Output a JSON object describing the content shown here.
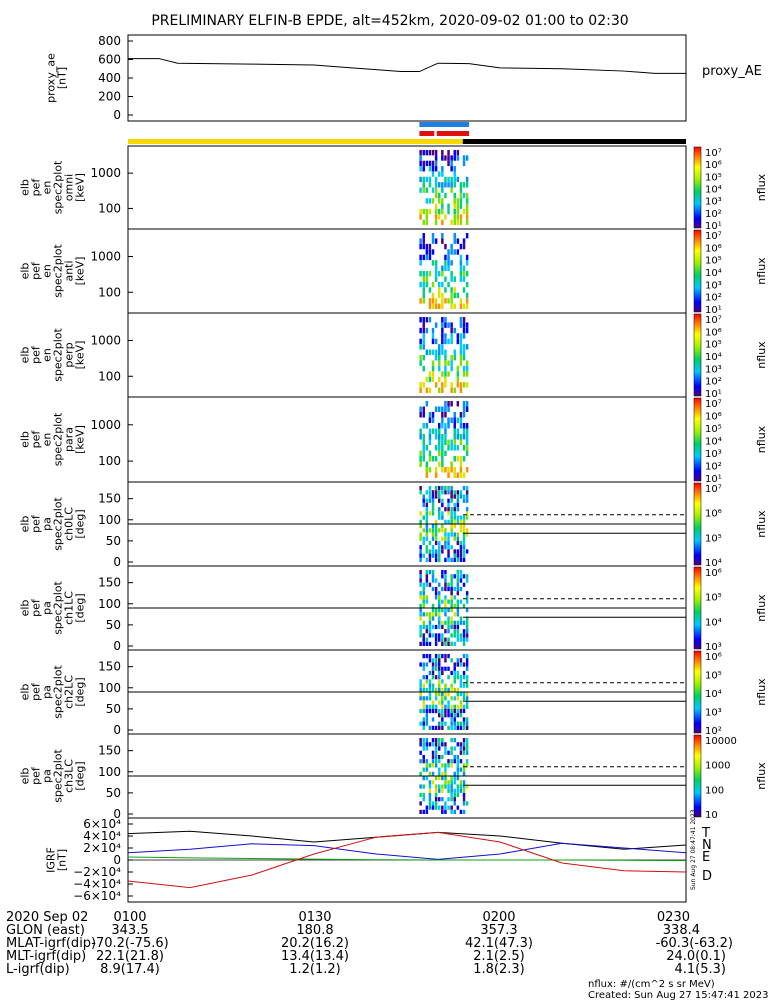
{
  "title": "PRELIMINARY ELFIN-B EPDE, alt=452km, 2020-09-02 01:00 to 02:30",
  "colors": {
    "sunlit_bar": "#f5d800",
    "shadow_bar": "#000000",
    "science_blue": "#1f7fe0",
    "science_red": "#e01010",
    "trace_T": "#000000",
    "trace_N": "#1010d0",
    "trace_E": "#10a010",
    "trace_D": "#d01010"
  },
  "panels": [
    {
      "id": "proxy_ae",
      "ylabel": [
        "proxy_ae",
        "[nT]"
      ],
      "right_label": "proxy_AE",
      "yticks": [
        "800",
        "600",
        "400",
        "200",
        "0"
      ]
    },
    {
      "id": "omni",
      "ylabel": [
        "elb",
        "pef",
        "en",
        "spec2plot",
        "omni",
        "[keV]"
      ],
      "yticks": [
        "1000",
        "100"
      ],
      "cbar_label": "nflux",
      "cbar_ticks": [
        "10⁷",
        "10⁶",
        "10⁵",
        "10⁴",
        "10³",
        "10²",
        "10¹"
      ]
    },
    {
      "id": "anti",
      "ylabel": [
        "elb",
        "pef",
        "en",
        "spec2plot",
        "anti",
        "[keV]"
      ],
      "yticks": [
        "1000",
        "100"
      ],
      "cbar_label": "nflux",
      "cbar_ticks": [
        "10⁷",
        "10⁶",
        "10⁵",
        "10⁴",
        "10³",
        "10²",
        "10¹"
      ]
    },
    {
      "id": "perp",
      "ylabel": [
        "elb",
        "pef",
        "en",
        "spec2plot",
        "perp",
        "[keV]"
      ],
      "yticks": [
        "1000",
        "100"
      ],
      "cbar_label": "nflux",
      "cbar_ticks": [
        "10⁷",
        "10⁶",
        "10⁵",
        "10⁴",
        "10³",
        "10²",
        "10¹"
      ]
    },
    {
      "id": "para",
      "ylabel": [
        "elb",
        "pef",
        "en",
        "spec2plot",
        "para",
        "[keV]"
      ],
      "yticks": [
        "1000",
        "100"
      ],
      "cbar_label": "nflux",
      "cbar_ticks": [
        "10⁷",
        "10⁶",
        "10⁵",
        "10⁴",
        "10³",
        "10²",
        "10¹"
      ]
    },
    {
      "id": "ch0LC",
      "ylabel": [
        "elb",
        "pef",
        "pa",
        "spec2plot",
        "ch0LC",
        "[deg]"
      ],
      "yticks": [
        "150",
        "100",
        "50",
        "0"
      ],
      "cbar_label": "nflux",
      "cbar_ticks": [
        "10⁷",
        "10⁶",
        "10⁵",
        "10⁴"
      ]
    },
    {
      "id": "ch1LC",
      "ylabel": [
        "elb",
        "pef",
        "pa",
        "spec2plot",
        "ch1LC",
        "[deg]"
      ],
      "yticks": [
        "150",
        "100",
        "50",
        "0"
      ],
      "cbar_label": "nflux",
      "cbar_ticks": [
        "10⁶",
        "10⁵",
        "10⁴",
        "10³"
      ]
    },
    {
      "id": "ch2LC",
      "ylabel": [
        "elb",
        "pef",
        "pa",
        "spec2plot",
        "ch2LC",
        "[deg]"
      ],
      "yticks": [
        "150",
        "100",
        "50",
        "0"
      ],
      "cbar_label": "nflux",
      "cbar_ticks": [
        "10⁶",
        "10⁵",
        "10⁴",
        "10³",
        "10²"
      ]
    },
    {
      "id": "ch3LC",
      "ylabel": [
        "elb",
        "pef",
        "pa",
        "spec2plot",
        "ch3LC",
        "[deg]"
      ],
      "yticks": [
        "150",
        "100",
        "50",
        "0"
      ],
      "cbar_label": "nflux",
      "cbar_ticks": [
        "10000",
        "1000",
        "100",
        "10"
      ]
    },
    {
      "id": "igrf",
      "ylabel": [
        "IGRF",
        "[nT]"
      ],
      "yticks": [
        "6×10⁴",
        "4×10⁴",
        "2×10⁴",
        "0",
        "−2×10⁴",
        "−4×10⁴",
        "−6×10⁴"
      ],
      "legend": [
        "T",
        "N",
        "E",
        "D"
      ]
    }
  ],
  "chart_data": {
    "type": "line",
    "x_unit": "UT",
    "x_range": [
      "2020-09-02 01:00",
      "2020-09-02 02:30"
    ],
    "proxy_ae": {
      "ylim": [
        0,
        800
      ],
      "x": [
        "01:00",
        "01:05",
        "01:08",
        "01:20",
        "01:30",
        "01:35",
        "01:40",
        "01:44",
        "01:47",
        "01:50",
        "01:55",
        "02:00",
        "02:10",
        "02:20",
        "02:25",
        "02:30"
      ],
      "values": [
        610,
        610,
        560,
        550,
        540,
        515,
        490,
        470,
        470,
        560,
        555,
        510,
        500,
        475,
        450,
        450
      ]
    },
    "spectrogram_activity": {
      "start": "01:47",
      "end": "01:55"
    },
    "science_zone_blue": {
      "start": "01:47",
      "end": "01:55"
    },
    "science_zone_red": {
      "start": "01:47",
      "end": "01:55"
    },
    "sunlit": {
      "start": "01:00",
      "end": "01:54"
    },
    "shadow": {
      "start": "01:54",
      "end": "02:30"
    },
    "pa_reference_line_deg": 90,
    "loss_cone_dashed_deg": 112,
    "loss_cone_solid_deg": 68,
    "igrf": {
      "ylim": [
        -60000,
        60000
      ],
      "x": [
        "01:00",
        "01:10",
        "01:20",
        "01:30",
        "01:40",
        "01:50",
        "02:00",
        "02:10",
        "02:20",
        "02:30"
      ],
      "series": [
        {
          "name": "T",
          "values": [
            44000,
            48000,
            40000,
            30000,
            38000,
            46000,
            40000,
            28000,
            18000,
            25000
          ]
        },
        {
          "name": "N",
          "values": [
            12000,
            18000,
            27000,
            24000,
            10000,
            1000,
            10000,
            28000,
            20000,
            12000
          ]
        },
        {
          "name": "E",
          "values": [
            5000,
            3500,
            2500,
            1500,
            500,
            0,
            0,
            0,
            -500,
            -1000
          ]
        },
        {
          "name": "D",
          "values": [
            -35000,
            -46000,
            -25000,
            10000,
            38000,
            46000,
            30000,
            -5000,
            -18000,
            -20000
          ]
        }
      ]
    }
  },
  "footer": {
    "row_labels": [
      "2020 Sep 02",
      "GLON (east)",
      "MLAT-igrf(dip)",
      "MLT-igrf(dip)",
      "L-igrf(dip)"
    ],
    "columns": [
      {
        "time": "0100",
        "values": [
          "343.5",
          "-70.2(-75.6)",
          "22.1(21.8)",
          "8.9(17.4)"
        ]
      },
      {
        "time": "0130",
        "values": [
          "180.8",
          "20.2(16.2)",
          "13.4(13.4)",
          "1.2(1.2)"
        ]
      },
      {
        "time": "0200",
        "values": [
          "357.3",
          "42.1(47.3)",
          "2.1(2.5)",
          "1.8(2.3)"
        ]
      },
      {
        "time": "0230",
        "values": [
          "338.4",
          "-60.3(-63.2)",
          "24.0(0.1)",
          "4.1(5.3)"
        ]
      }
    ],
    "units_note": "nflux: #/(cm^2 s sr MeV)",
    "created": "Created: Sun Aug 27 15:47:41 2023",
    "side_stamp": "Sun Aug 27 08:47:41 2023"
  }
}
